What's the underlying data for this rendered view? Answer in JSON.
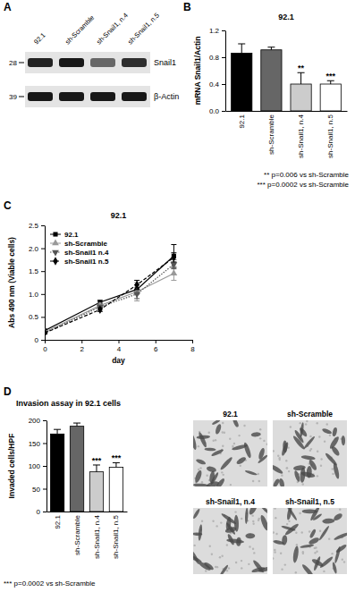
{
  "blot": {
    "panel": "A",
    "lanes": [
      "92.1",
      "sh-Scramble",
      "sh-Snail1, n.4",
      "sh-Snail1, n.5"
    ],
    "rows": [
      {
        "label": "Snail1",
        "mw_marker": 28,
        "intensities": [
          0.85,
          0.9,
          0.55,
          0.8
        ]
      },
      {
        "label": "β-Actin",
        "mw_marker": 39,
        "intensities": [
          0.9,
          0.9,
          0.9,
          0.9
        ]
      }
    ]
  },
  "chart_data": [
    {
      "panel": "B",
      "type": "bar",
      "title": "92.1",
      "y_label": "mRNA Snail1/Actin",
      "categories": [
        "92.1",
        "sh-Scramble",
        "sh-Snail1, n.4",
        "sh-Snail1, n.5"
      ],
      "values": [
        0.86,
        0.91,
        0.4,
        0.4
      ],
      "errors": [
        0.14,
        0.04,
        0.17,
        0.05
      ],
      "colors": [
        "#000000",
        "#666666",
        "#cccccc",
        "#ffffff"
      ],
      "significance": [
        null,
        null,
        "**",
        "***"
      ],
      "ylim": [
        0,
        1.2
      ],
      "yticks": [
        {
          "value": 0,
          "label": "0.0"
        },
        0.4,
        0.8,
        1.2
      ],
      "annotations": [
        "** p=0.006 vs sh-Scramble",
        "*** p=0.0002 vs sh-Scramble"
      ]
    },
    {
      "panel": "C",
      "type": "line",
      "title": "92.1",
      "x_label": "day",
      "y_label": "Abs 490 nm (Viable cells)",
      "x": [
        0,
        3,
        5,
        7
      ],
      "series": [
        {
          "name": "92.1",
          "color": "#000000",
          "marker": "square",
          "line_style": "solid",
          "values": [
            0.2,
            0.82,
            1.1,
            1.83
          ],
          "errors": [
            0.02,
            0.04,
            0.1,
            0.25
          ]
        },
        {
          "name": "sh-Scramble",
          "color": "#999999",
          "marker": "triangle",
          "line_style": "solid",
          "values": [
            0.17,
            0.75,
            1.05,
            1.45
          ],
          "errors": [
            0.02,
            0.05,
            0.2,
            0.15
          ]
        },
        {
          "name": "sh-Snail1 n.4",
          "color": "#555555",
          "marker": "triangle-down",
          "line_style": "dotted",
          "values": [
            0.15,
            0.72,
            1.0,
            1.65
          ],
          "errors": [
            0.02,
            0.04,
            0.1,
            0.1
          ]
        },
        {
          "name": "sh-Snail1 n.5",
          "color": "#000000",
          "marker": "diamond",
          "line_style": "dashed",
          "values": [
            0.15,
            0.66,
            1.2,
            1.8
          ],
          "errors": [
            0.02,
            0.04,
            0.1,
            0.1
          ]
        }
      ],
      "xlim": [
        0,
        8
      ],
      "xticks": [
        0,
        2,
        4,
        6,
        8
      ],
      "ylim": [
        0,
        2.5
      ],
      "yticks": [
        0,
        0.5,
        {
          "value": 1,
          "label": "1.0"
        },
        1.5,
        {
          "value": 2,
          "label": "2.0"
        },
        2.5
      ],
      "legend": "upper left"
    },
    {
      "panel": "D",
      "type": "bar",
      "title": "Invasion assay in 92.1 cells",
      "y_label": "Invaded cells/HPF",
      "categories": [
        "92.1",
        "sh-Scramble",
        "sh-Snail1, n.4",
        "sh-Snail1, n.5"
      ],
      "values": [
        170,
        187,
        87,
        97
      ],
      "errors": [
        10,
        7,
        15,
        10
      ],
      "colors": [
        "#000000",
        "#666666",
        "#cccccc",
        "#ffffff"
      ],
      "significance": [
        null,
        null,
        "***",
        "***"
      ],
      "ylim": [
        0,
        200
      ],
      "yticks": [
        0,
        50,
        100,
        150,
        200
      ],
      "annotations": [
        "*** p=0.0002 vs sh-Scramble"
      ]
    }
  ],
  "micrographs": {
    "labels": [
      "92.1",
      "sh-Scramble",
      "sh-Snail1, n.4",
      "sh-Snail1, n.5"
    ]
  }
}
